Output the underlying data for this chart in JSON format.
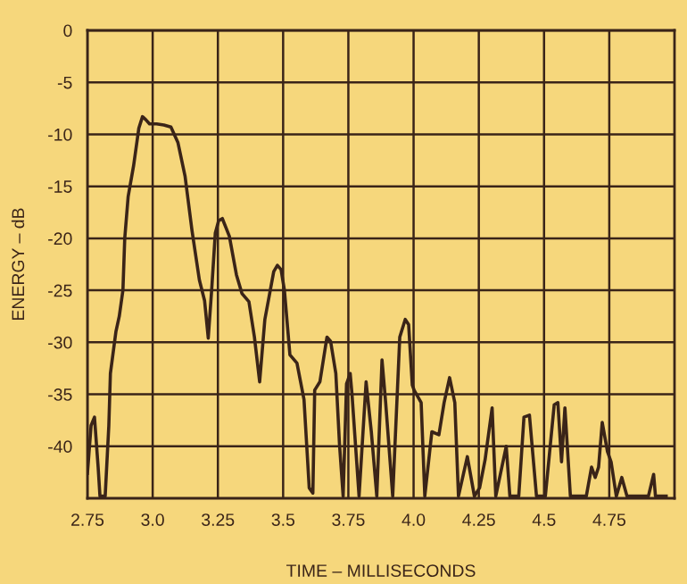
{
  "chart_data": {
    "type": "line",
    "xlabel": "TIME – MILLISECONDS",
    "ylabel": "ENERGY – dB",
    "xlim": [
      2.75,
      5.0
    ],
    "ylim": [
      -45,
      0
    ],
    "xticks": [
      2.75,
      {
        "value": 3.0,
        "label": "3.0"
      },
      3.25,
      3.5,
      3.75,
      {
        "value": 4.0,
        "label": "4.0"
      },
      4.25,
      4.5,
      4.75
    ],
    "yticks": [
      0,
      -5,
      -10,
      -15,
      -20,
      -25,
      -30,
      -35,
      -40
    ],
    "grid": true,
    "marker": "none",
    "line_style": "solid",
    "series": [
      {
        "color": "#3a2418",
        "x": [
          2.75,
          2.764,
          2.777,
          2.791,
          2.798,
          2.818,
          2.832,
          2.838,
          2.859,
          2.872,
          2.886,
          2.893,
          2.906,
          2.927,
          2.947,
          2.961,
          2.974,
          2.988,
          3.015,
          3.043,
          3.07,
          3.097,
          3.124,
          3.151,
          3.179,
          3.199,
          3.213,
          3.226,
          3.24,
          3.253,
          3.267,
          3.294,
          3.321,
          3.342,
          3.369,
          3.39,
          3.41,
          3.43,
          3.464,
          3.478,
          3.492,
          3.505,
          3.526,
          3.553,
          3.58,
          3.6,
          3.614,
          3.621,
          3.641,
          3.668,
          3.682,
          3.702,
          3.716,
          3.73,
          3.743,
          3.757,
          3.764,
          3.791,
          3.818,
          3.838,
          3.859,
          3.879,
          3.893,
          3.92,
          3.947,
          3.968,
          3.981,
          3.995,
          4.002,
          4.029,
          4.043,
          4.07,
          4.097,
          4.117,
          4.138,
          4.158,
          4.172,
          4.206,
          4.233,
          4.253,
          4.274,
          4.301,
          4.315,
          4.355,
          4.369,
          4.403,
          4.423,
          4.444,
          4.471,
          4.505,
          4.539,
          4.553,
          4.567,
          4.58,
          4.601,
          4.662,
          4.682,
          4.696,
          4.709,
          4.723,
          4.743,
          4.757,
          4.777,
          4.798,
          4.818,
          4.9,
          4.92,
          4.927,
          4.968
        ],
        "values": [
          -42.6,
          -38,
          -37.2,
          -42,
          -44.8,
          -44.8,
          -38,
          -33,
          -29,
          -27.5,
          -25,
          -20,
          -16,
          -13,
          -9.4,
          -8.3,
          -8.6,
          -9.0,
          -9.0,
          -9.1,
          -9.3,
          -10.8,
          -14,
          -19.3,
          -24,
          -26,
          -29.6,
          -25,
          -19.5,
          -18.3,
          -18.1,
          -19.8,
          -23.5,
          -25.3,
          -26.1,
          -29.5,
          -33.8,
          -27.8,
          -23.2,
          -22.6,
          -23,
          -25,
          -31.2,
          -32,
          -35.5,
          -44,
          -44.5,
          -34.6,
          -33.8,
          -29.5,
          -29.9,
          -33,
          -39.8,
          -44.8,
          -34,
          -33,
          -35,
          -44.8,
          -33.8,
          -38.6,
          -44.8,
          -31.7,
          -35.8,
          -44.8,
          -29.5,
          -27.8,
          -28.3,
          -34.1,
          -34.6,
          -35.8,
          -44.8,
          -38.6,
          -38.9,
          -35.8,
          -33.4,
          -35.8,
          -44.8,
          -41,
          -44.8,
          -44,
          -41.3,
          -36.3,
          -44.8,
          -40,
          -44.8,
          -44.8,
          -37.2,
          -37,
          -44.8,
          -44.8,
          -36,
          -35.8,
          -41.5,
          -36.3,
          -44.8,
          -44.8,
          -42,
          -43,
          -42,
          -37.7,
          -40.5,
          -41.5,
          -44.8,
          -43,
          -44.8,
          -44.8,
          -42.7,
          -44.8,
          -44.8
        ]
      }
    ]
  }
}
